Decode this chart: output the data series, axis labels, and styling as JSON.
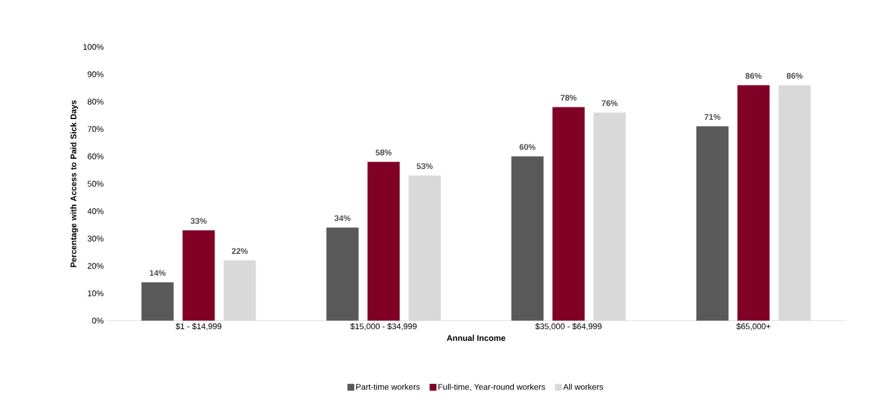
{
  "chart_data": {
    "type": "bar",
    "xlabel": "Annual Income",
    "ylabel": "Percentage with Access to Paid Sick Days",
    "categories": [
      "$1 - $14,999",
      "$15,000 - $34,999",
      "$35,000 - $64,999",
      "$65,000+"
    ],
    "series": [
      {
        "name": "Part-time workers",
        "color": "#595959",
        "values": [
          14,
          34,
          60,
          71
        ],
        "value_labels": [
          "14%",
          "34%",
          "60%",
          "71%"
        ]
      },
      {
        "name": "Full-time, Year-round workers",
        "color": "#800026",
        "values": [
          33,
          58,
          78,
          86
        ],
        "value_labels": [
          "33%",
          "58%",
          "78%",
          "86%"
        ]
      },
      {
        "name": "All workers",
        "color": "#d9d9d9",
        "values": [
          22,
          53,
          76,
          86
        ],
        "value_labels": [
          "22%",
          "53%",
          "76%",
          "86%"
        ]
      }
    ],
    "ylim": [
      0,
      100
    ],
    "yticks": [
      {
        "value": 0,
        "label": "0%"
      },
      {
        "value": 10,
        "label": "10%"
      },
      {
        "value": 20,
        "label": "20%"
      },
      {
        "value": 30,
        "label": "30%"
      },
      {
        "value": 40,
        "label": "40%"
      },
      {
        "value": 50,
        "label": "50%"
      },
      {
        "value": 60,
        "label": "60%"
      },
      {
        "value": 70,
        "label": "70%"
      },
      {
        "value": 80,
        "label": "80%"
      },
      {
        "value": 90,
        "label": "90%"
      },
      {
        "value": 100,
        "label": "100%"
      }
    ],
    "grid": false,
    "legend": "bottom"
  }
}
